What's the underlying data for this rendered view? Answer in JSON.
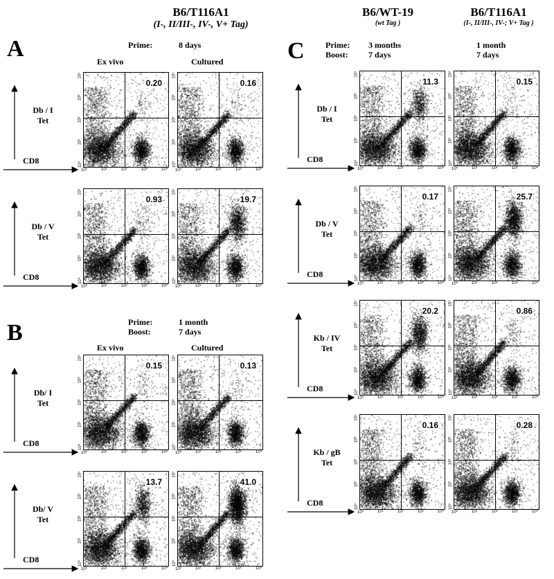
{
  "header_left": {
    "title": "B6/T116A1",
    "subtitle": "(I-, II/III-, IV-, V+ Tag)"
  },
  "header_mid": {
    "title": "B6/WT-19",
    "subtitle": "(wt Tag )"
  },
  "header_right": {
    "title": "B6/T116A1",
    "subtitle": "(I-, II/III-, IV-; V+ Tag )"
  },
  "panelA": {
    "letter": "A",
    "prime_label": "Prime:",
    "prime_value": "8 days",
    "col1": "Ex vivo",
    "col2": "Cultured",
    "rows": [
      {
        "ylabel1": "Db / I",
        "ylabel2": "Tet",
        "xlabel": "CD8",
        "values": [
          "0.20",
          "0.16"
        ]
      },
      {
        "ylabel1": "Db / V",
        "ylabel2": "Tet",
        "xlabel": "CD8",
        "values": [
          "0.93",
          "19.7"
        ]
      }
    ]
  },
  "panelB": {
    "letter": "B",
    "prime_label": "Prime:",
    "prime_value": "1 month",
    "boost_label": "Boost:",
    "boost_value": "7 days",
    "col1": "Ex vivo",
    "col2": "Cultured",
    "rows": [
      {
        "ylabel1": "Db/ I",
        "ylabel2": "Tet",
        "xlabel": "CD8",
        "values": [
          "0.15",
          "0.13"
        ]
      },
      {
        "ylabel1": "Db/ V",
        "ylabel2": "Tet",
        "xlabel": "CD8",
        "values": [
          "13.7",
          "41.0"
        ]
      }
    ]
  },
  "panelC": {
    "letter": "C",
    "prime_label": "Prime:",
    "boost_label": "Boost:",
    "col1_prime": "3 months",
    "col1_boost": "7 days",
    "col2_prime": "1 month",
    "col2_boost": "7 days",
    "rows": [
      {
        "ylabel1": "Db / I",
        "ylabel2": "Tet",
        "xlabel": "CD8",
        "values": [
          "11.3",
          "0.15"
        ]
      },
      {
        "ylabel1": "Db / V",
        "ylabel2": "Tet",
        "xlabel": "CD8",
        "values": [
          "0.17",
          "25.7"
        ]
      },
      {
        "ylabel1": "Kb / IV",
        "ylabel2": "Tet",
        "xlabel": "CD8",
        "values": [
          "20.2",
          "0.86"
        ]
      },
      {
        "ylabel1": "Kb / gB",
        "ylabel2": "Tet",
        "xlabel": "CD8",
        "values": [
          "0.16",
          "0.28"
        ]
      }
    ]
  },
  "ticks": [
    "10⁰",
    "10¹",
    "10²",
    "10³",
    "10⁴"
  ]
}
